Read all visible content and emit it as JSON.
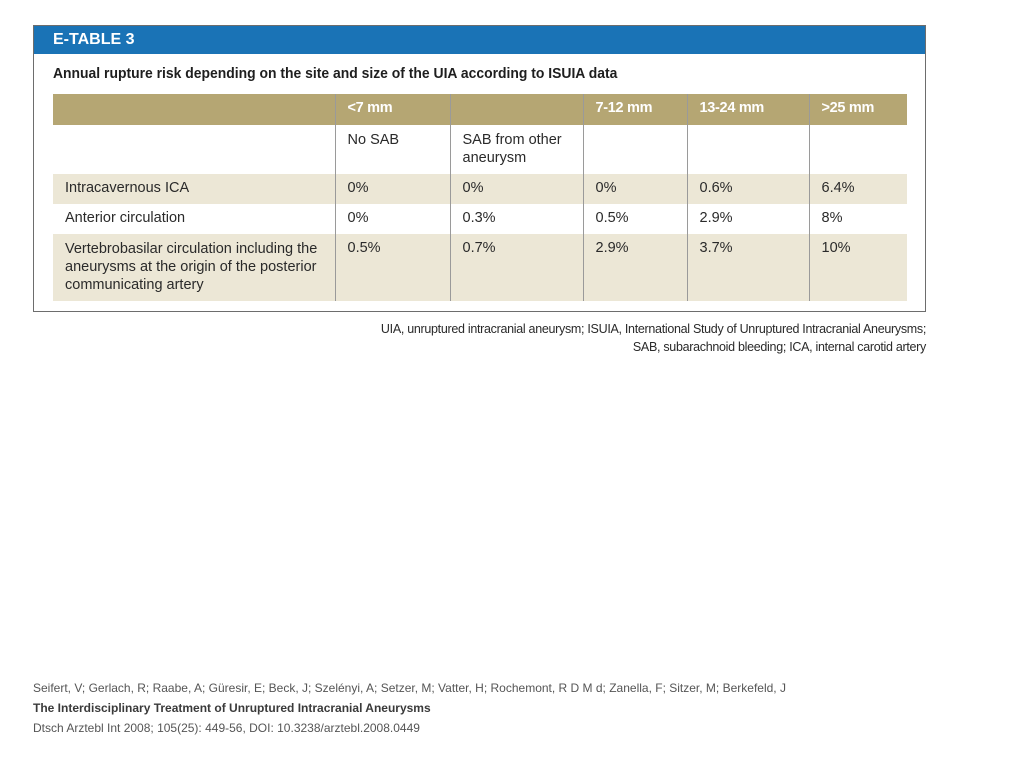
{
  "table": {
    "label": "E-TABLE 3",
    "caption": "Annual rupture risk depending on the site and size of the UIA according to ISUIA data",
    "header": [
      "",
      "<7 mm",
      "",
      "7-12 mm",
      "13-24 mm",
      ">25 mm"
    ],
    "subheader": [
      "",
      "No SAB",
      "SAB from other aneurysm",
      "",
      "",
      ""
    ],
    "rows": [
      {
        "label": "Intracavernous ICA",
        "values": [
          "0%",
          "0%",
          "0%",
          "0.6%",
          "6.4%"
        ]
      },
      {
        "label": "Anterior circulation",
        "values": [
          "0%",
          "0.3%",
          "0.5%",
          "2.9%",
          "8%"
        ]
      },
      {
        "label": "Vertebrobasilar circulation including the aneurysms at the origin of the posterior communicating artery",
        "values": [
          "0.5%",
          "0.7%",
          "2.9%",
          "3.7%",
          "10%"
        ]
      }
    ],
    "footnote_line1": "UIA, unruptured intracranial aneurysm; ISUIA, International Study of Unruptured Intracranial Aneurysms;",
    "footnote_line2": "SAB, subarachnoid bleeding; ICA, internal carotid artery"
  },
  "citation": {
    "authors": "Seifert, V; Gerlach, R; Raabe, A; Güresir, E; Beck, J; Szelényi, A; Setzer, M; Vatter, H; Rochemont, R D M d; Zanella, F; Sitzer, M; Berkefeld, J",
    "title": "The Interdisciplinary Treatment of Unruptured Intracranial Aneurysms",
    "source": "Dtsch Arztebl Int 2008; 105(25): 449-56, DOI: 10.3238/arztebl.2008.0449"
  },
  "colors": {
    "header_blue": "#1a73b6",
    "header_gold": "#b5a673",
    "band": "#ece7d6"
  }
}
